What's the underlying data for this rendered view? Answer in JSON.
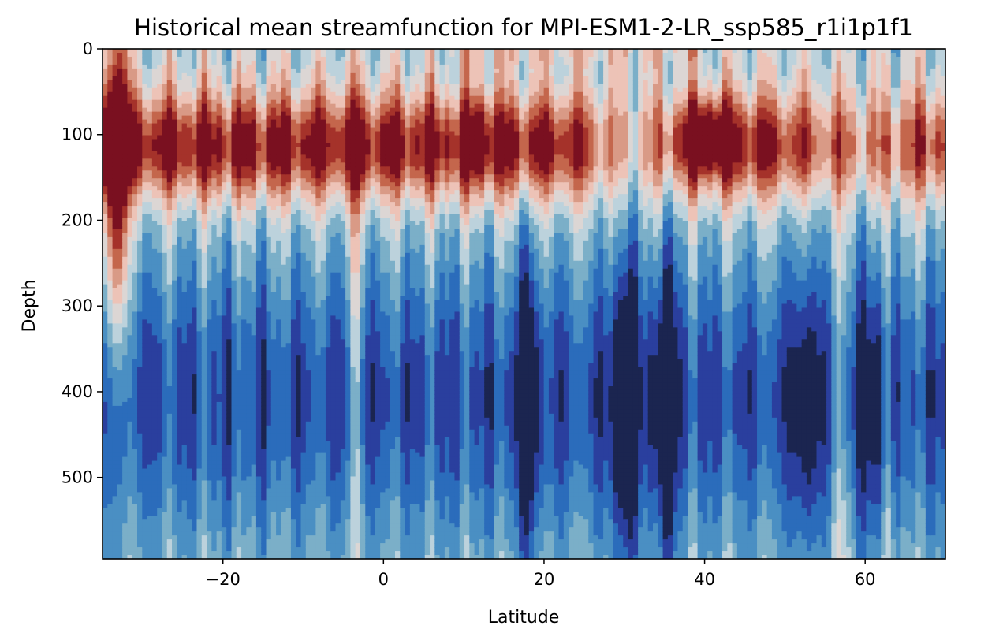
{
  "chart_data": {
    "type": "heatmap",
    "subtype": "filled-contour",
    "title": "Historical mean streamfunction for MPI-ESM1-2-LR_ssp585_r1i1p1f1",
    "xlabel": "Latitude",
    "ylabel": "Depth",
    "xlim": [
      -35,
      70
    ],
    "ylim": [
      0,
      595
    ],
    "y_inverted": true,
    "x_ticks": [
      -20,
      0,
      20,
      40,
      60
    ],
    "x_tick_labels": [
      "−20",
      "0",
      "20",
      "40",
      "60"
    ],
    "y_ticks": [
      0,
      100,
      200,
      300,
      400,
      500
    ],
    "y_tick_labels": [
      "0",
      "100",
      "200",
      "300",
      "400",
      "500"
    ],
    "colormap": "diverging blue (negative) to red (positive)",
    "levels_colors": [
      "#1b2550",
      "#2a3f9e",
      "#2b6cbb",
      "#4a8fc3",
      "#7bafc8",
      "#bcd2dc",
      "#dcd6d4",
      "#edc3b7",
      "#d99a86",
      "#c4664c",
      "#a5322a",
      "#7a1020"
    ],
    "grid": false,
    "legend": "none",
    "features": [
      {
        "label": "strong positive cell",
        "lat": -33,
        "depth": 130
      },
      {
        "label": "positive band",
        "lat_range": [
          -35,
          50
        ],
        "depth_range": [
          60,
          170
        ]
      },
      {
        "label": "positive maximum",
        "lat": 40,
        "depth": 100
      },
      {
        "label": "negative column",
        "lat": 18,
        "depth_range": [
          280,
          595
        ]
      },
      {
        "label": "negative column",
        "lat": 30,
        "depth_range": [
          260,
          595
        ]
      },
      {
        "label": "negative column",
        "lat": 35,
        "depth_range": [
          270,
          595
        ]
      },
      {
        "label": "negative column",
        "lat": 52,
        "depth_range": [
          300,
          595
        ]
      },
      {
        "label": "negative column",
        "lat": 61,
        "depth_range": [
          100,
          595
        ]
      }
    ]
  }
}
